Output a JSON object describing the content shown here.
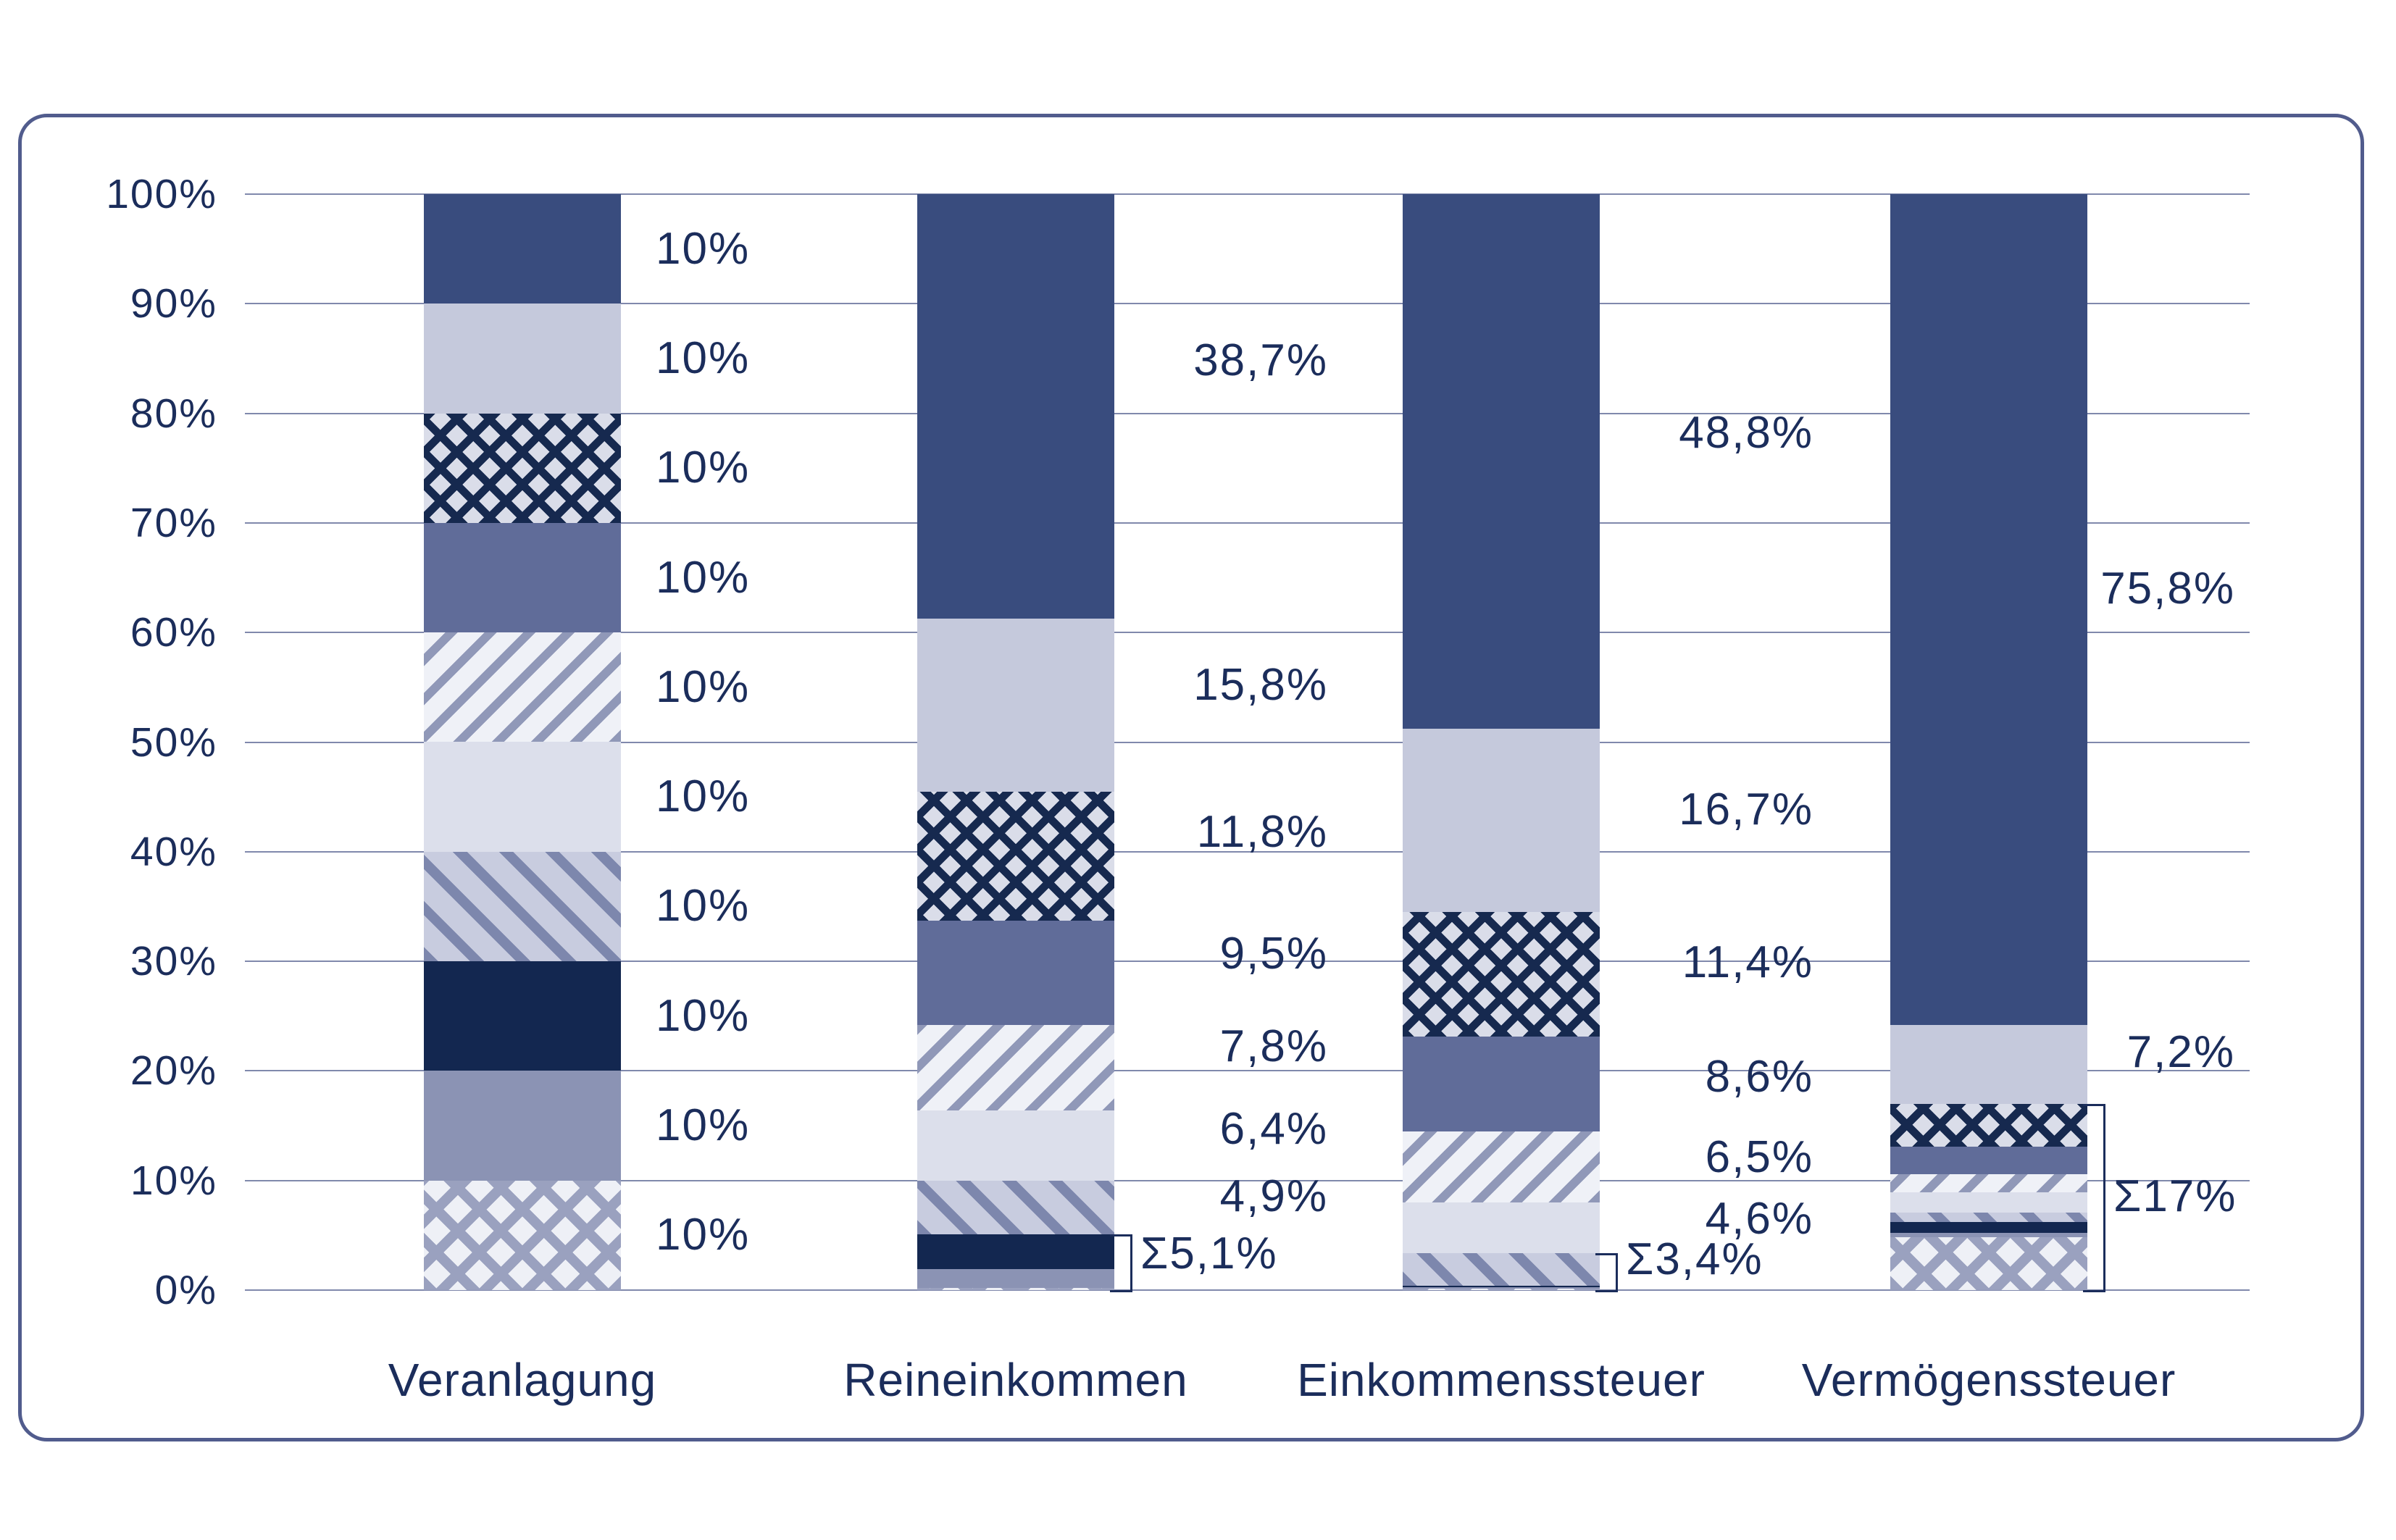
{
  "palette": {
    "text": "#1b2d5b",
    "gridline": "#8089ac",
    "card_border": "#515c8d",
    "background": "#ffffff"
  },
  "chart_data": {
    "type": "bar",
    "stacked": true,
    "grid": true,
    "legend_position": "none",
    "y_axis": {
      "min": 0,
      "max": 100,
      "step": 10,
      "tick_suffix": "%",
      "tick_labels": [
        "100%",
        "90%",
        "80%",
        "70%",
        "60%",
        "50%",
        "40%",
        "30%",
        "20%",
        "10%",
        "0%"
      ]
    },
    "categories": [
      "Veranlagung",
      "Reineinkommen",
      "Einkommenssteuer",
      "Vermögenssteuer"
    ],
    "patterns": {
      "d10": {
        "type": "solid",
        "color": "#394c7e",
        "semantic": "decile-10-top"
      },
      "d9": {
        "type": "solid",
        "color": "#c5c9dc",
        "semantic": "decile-9"
      },
      "d8": {
        "type": "crosshatch",
        "line": "#16294f",
        "bg": "#dadde9",
        "cell": 32,
        "thick": 11,
        "semantic": "decile-8"
      },
      "d7": {
        "type": "solid",
        "color": "#606c99",
        "semantic": "decile-7"
      },
      "d6": {
        "type": "stripe-up",
        "line": "#9098b8",
        "bg": "#eff1f7",
        "period": 38,
        "thick": 12,
        "semantic": "decile-6"
      },
      "d5": {
        "type": "solid",
        "color": "#dcdfeb",
        "semantic": "decile-5"
      },
      "d4": {
        "type": "stripe-down",
        "line": "#7d87ad",
        "bg": "#c8ccdf",
        "period": 45,
        "thick": 14,
        "semantic": "decile-4"
      },
      "d3": {
        "type": "solid",
        "color": "#132750",
        "semantic": "decile-3"
      },
      "d2": {
        "type": "solid",
        "color": "#8b93b4",
        "semantic": "decile-2"
      },
      "d1": {
        "type": "crosshatch",
        "line": "#9aa1bf",
        "bg": "#eef0f6",
        "cell": 42,
        "thick": 14,
        "semantic": "decile-1-bottom"
      }
    },
    "bars": [
      {
        "category": "Veranlagung",
        "segments": [
          {
            "pattern": "d10",
            "value": 10,
            "label": {
              "text": "10%",
              "pos_pct": 95
            }
          },
          {
            "pattern": "d9",
            "value": 10,
            "label": {
              "text": "10%",
              "pos_pct": 85
            }
          },
          {
            "pattern": "d8",
            "value": 10,
            "label": {
              "text": "10%",
              "pos_pct": 75
            }
          },
          {
            "pattern": "d7",
            "value": 10,
            "label": {
              "text": "10%",
              "pos_pct": 65
            }
          },
          {
            "pattern": "d6",
            "value": 10,
            "label": {
              "text": "10%",
              "pos_pct": 55
            }
          },
          {
            "pattern": "d5",
            "value": 10,
            "label": {
              "text": "10%",
              "pos_pct": 45
            }
          },
          {
            "pattern": "d4",
            "value": 10,
            "label": {
              "text": "10%",
              "pos_pct": 35
            }
          },
          {
            "pattern": "d3",
            "value": 10,
            "label": {
              "text": "10%",
              "pos_pct": 25
            }
          },
          {
            "pattern": "d2",
            "value": 10,
            "label": {
              "text": "10%",
              "pos_pct": 15
            }
          },
          {
            "pattern": "d1",
            "value": 10,
            "label": {
              "text": "10%",
              "pos_pct": 5
            }
          }
        ],
        "sum_label": null
      },
      {
        "category": "Reineinkommen",
        "segments": [
          {
            "pattern": "d10",
            "value": 38.7,
            "label": {
              "text": "38,7%",
              "pos_pct": 84.8
            }
          },
          {
            "pattern": "d9",
            "value": 15.8,
            "label": {
              "text": "15,8%",
              "pos_pct": 55.2
            }
          },
          {
            "pattern": "d8",
            "value": 11.8,
            "label": {
              "text": "11,8%",
              "pos_pct": 41.8
            }
          },
          {
            "pattern": "d7",
            "value": 9.5,
            "label": {
              "text": "9,5%",
              "pos_pct": 30.7
            }
          },
          {
            "pattern": "d6",
            "value": 7.8,
            "label": {
              "text": "7,8%",
              "pos_pct": 22.2
            }
          },
          {
            "pattern": "d5",
            "value": 6.4,
            "label": {
              "text": "6,4%",
              "pos_pct": 14.7
            }
          },
          {
            "pattern": "d4",
            "value": 4.9,
            "label": {
              "text": "4,9%",
              "pos_pct": 8.5
            }
          },
          {
            "pattern": "d3",
            "value": 3.2,
            "estimated": true
          },
          {
            "pattern": "d2",
            "value": 1.7,
            "estimated": true
          },
          {
            "pattern": "d1",
            "value": 0.2,
            "estimated": true
          }
        ],
        "sum_label": {
          "text": "Σ5,1%",
          "sum_value": 5.1,
          "span_pct": 5.1,
          "pos_pct": 3.3
        }
      },
      {
        "category": "Einkommenssteuer",
        "segments": [
          {
            "pattern": "d10",
            "value": 48.8,
            "label": {
              "text": "48,8%",
              "pos_pct": 78.2
            }
          },
          {
            "pattern": "d9",
            "value": 16.7,
            "label": {
              "text": "16,7%",
              "pos_pct": 43.8
            }
          },
          {
            "pattern": "d8",
            "value": 11.4,
            "label": {
              "text": "11,4%",
              "pos_pct": 29.9
            }
          },
          {
            "pattern": "d7",
            "value": 8.6,
            "label": {
              "text": "8,6%",
              "pos_pct": 19.4
            }
          },
          {
            "pattern": "d6",
            "value": 6.5,
            "label": {
              "text": "6,5%",
              "pos_pct": 12.1
            }
          },
          {
            "pattern": "d5",
            "value": 4.6,
            "label": {
              "text": "4,6%",
              "pos_pct": 6.5
            }
          },
          {
            "pattern": "d4",
            "value": 3.0,
            "estimated": true
          },
          {
            "pattern": "d3",
            "value": 0.15,
            "estimated": true
          },
          {
            "pattern": "d2",
            "value": 0.15,
            "estimated": true
          },
          {
            "pattern": "d1",
            "value": 0.1,
            "estimated": true
          }
        ],
        "sum_label": {
          "text": "Σ3,4%",
          "sum_value": 3.4,
          "span_pct": 3.4,
          "pos_pct": 2.8
        }
      },
      {
        "category": "Vermögenssteuer",
        "segments": [
          {
            "pattern": "d10",
            "value": 75.8,
            "label": {
              "text": "75,8%",
              "pos_pct": 64.0
            }
          },
          {
            "pattern": "d9",
            "value": 7.2,
            "label": {
              "text": "7,2%",
              "pos_pct": 21.7
            }
          },
          {
            "pattern": "d8",
            "value": 3.9,
            "estimated": true
          },
          {
            "pattern": "d7",
            "value": 2.5,
            "estimated": true
          },
          {
            "pattern": "d6",
            "value": 1.7,
            "estimated": true
          },
          {
            "pattern": "d5",
            "value": 1.8,
            "estimated": true
          },
          {
            "pattern": "d4",
            "value": 0.9,
            "estimated": true
          },
          {
            "pattern": "d3",
            "value": 1.0,
            "estimated": true
          },
          {
            "pattern": "d2",
            "value": 0.35,
            "estimated": true
          },
          {
            "pattern": "d1",
            "value": 4.85,
            "estimated": true
          }
        ],
        "sum_label": {
          "text": "Σ17%",
          "sum_value": 17,
          "span_pct": 17,
          "pos_pct": 8.5
        }
      }
    ]
  }
}
